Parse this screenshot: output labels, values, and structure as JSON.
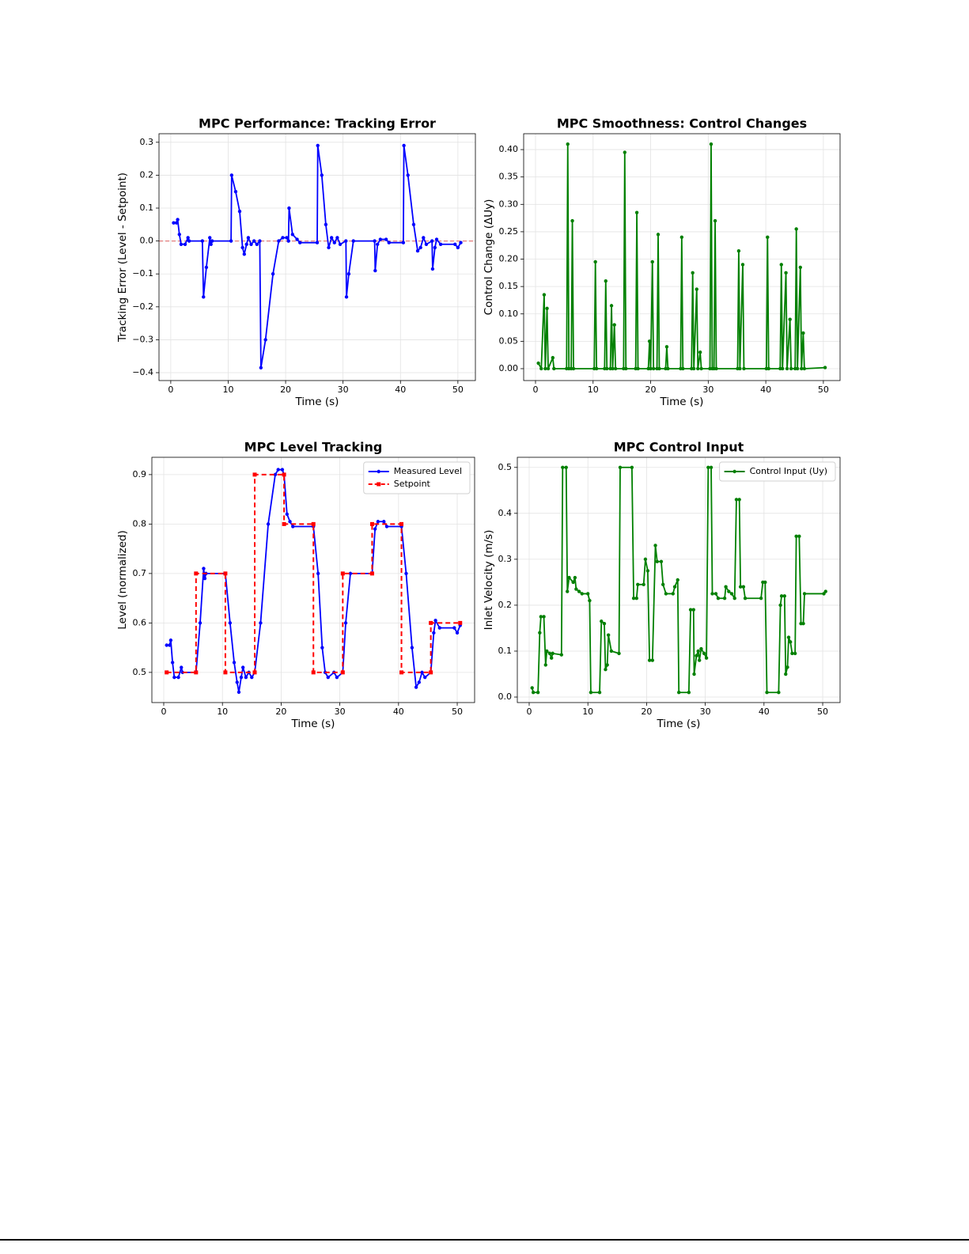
{
  "chart_data": [
    {
      "type": "line",
      "title": "MPC Performance: Tracking Error",
      "xlabel": "Time (s)",
      "ylabel": "Tracking Error (Level - Setpoint)",
      "xlim": [
        -2.05,
        53.05
      ],
      "ylim": [
        -0.424,
        0.326
      ],
      "xticks": [
        0,
        10,
        20,
        30,
        40,
        50
      ],
      "yticks": [
        {
          "value": -0.4,
          "label": "−0.4"
        },
        {
          "value": -0.3,
          "label": "−0.3"
        },
        {
          "value": -0.2,
          "label": "−0.2"
        },
        {
          "value": -0.1,
          "label": "−0.1"
        },
        {
          "value": 0,
          "label": "0.0"
        },
        0.1,
        0.2,
        0.3
      ],
      "grid": true,
      "hline": 0,
      "hline_color": "#e06060",
      "series": [
        {
          "color": "#0000ff",
          "x": [
            0.5,
            1.0,
            1.2,
            1.5,
            1.8,
            2.5,
            3.0,
            3.2,
            5.5,
            5.7,
            6.2,
            6.8,
            7.0,
            7.2,
            10.5,
            10.6,
            11.3,
            12.0,
            12.5,
            12.8,
            13.2,
            13.5,
            14.0,
            14.5,
            15.0,
            15.5,
            15.7,
            16.5,
            17.8,
            18.8,
            19.5,
            20.2,
            20.5,
            20.6,
            21.2,
            22.0,
            22.5,
            25.5,
            25.6,
            26.3,
            27.0,
            27.5,
            28.0,
            28.5,
            29.0,
            29.5,
            30.5,
            30.6,
            31.0,
            31.8,
            35.5,
            35.6,
            36.0,
            36.5,
            37.5,
            38.0,
            40.5,
            40.6,
            41.3,
            42.3,
            43.0,
            43.5,
            44.0,
            44.5,
            45.5,
            45.6,
            46.0,
            46.3,
            47.0,
            49.5,
            50.0,
            50.5
          ],
          "values": [
            0.055,
            0.055,
            0.065,
            0.02,
            -0.01,
            -0.01,
            0.01,
            0,
            0,
            -0.17,
            -0.08,
            0.01,
            -0.01,
            0,
            0,
            0.2,
            0.15,
            0.09,
            -0.02,
            -0.04,
            -0.01,
            0.01,
            -0.01,
            0,
            -0.01,
            0,
            -0.385,
            -0.3,
            -0.1,
            0,
            0.01,
            0.01,
            0,
            0.1,
            0.02,
            0.005,
            -0.005,
            -0.005,
            0.29,
            0.2,
            0.05,
            -0.02,
            0.01,
            -0.005,
            0.01,
            -0.01,
            0,
            -0.17,
            -0.1,
            0,
            0,
            -0.09,
            -0.01,
            0.005,
            0.005,
            -0.005,
            -0.005,
            0.29,
            0.2,
            0.05,
            -0.03,
            -0.02,
            0.01,
            -0.01,
            0,
            -0.085,
            -0.02,
            0.005,
            -0.01,
            -0.01,
            -0.02,
            -0.005
          ]
        }
      ]
    },
    {
      "type": "line",
      "title": "MPC Smoothness: Control Changes",
      "xlabel": "Time (s)",
      "ylabel": "Control Change (ΔUy)",
      "xlim": [
        -2.06,
        52.9
      ],
      "ylim": [
        -0.0217,
        0.429
      ],
      "xticks": [
        0,
        10,
        20,
        30,
        40,
        50
      ],
      "yticks": [
        {
          "value": 0,
          "label": "0.00"
        },
        {
          "value": 0.05,
          "label": "0.05"
        },
        {
          "value": 0.1,
          "label": "0.10"
        },
        {
          "value": 0.15,
          "label": "0.15"
        },
        {
          "value": 0.2,
          "label": "0.20"
        },
        {
          "value": 0.25,
          "label": "0.25"
        },
        {
          "value": 0.3,
          "label": "0.30"
        },
        {
          "value": 0.35,
          "label": "0.35"
        },
        {
          "value": 0.4,
          "label": "0.40"
        }
      ],
      "grid": true,
      "series": [
        {
          "color": "#008000",
          "x": [
            0.5,
            1.0,
            1.5,
            1.7,
            2.0,
            2.2,
            3.0,
            3.2,
            5.4,
            5.6,
            5.8,
            6.2,
            6.4,
            6.6,
            10.2,
            10.4,
            10.6,
            12.0,
            12.2,
            12.4,
            13.0,
            13.2,
            13.4,
            13.7,
            13.9,
            15.3,
            15.5,
            15.7,
            17.4,
            17.6,
            17.8,
            19.6,
            19.8,
            20.0,
            20.3,
            20.5,
            21.1,
            21.3,
            21.5,
            22.6,
            22.8,
            23.0,
            25.2,
            25.4,
            25.6,
            27.1,
            27.3,
            27.5,
            28.0,
            28.2,
            28.6,
            28.8,
            30.3,
            30.5,
            30.7,
            31.0,
            31.2,
            31.4,
            35.1,
            35.3,
            35.5,
            36.0,
            36.2,
            40.1,
            40.3,
            40.5,
            42.5,
            42.7,
            42.9,
            43.5,
            43.7,
            44.2,
            44.4,
            45.1,
            45.3,
            45.5,
            46.0,
            46.2,
            46.5,
            46.7,
            50.3
          ],
          "values": [
            0.01,
            0,
            0.135,
            0,
            0.11,
            0,
            0.02,
            0,
            0,
            0.41,
            0,
            0,
            0.27,
            0,
            0,
            0.195,
            0,
            0,
            0.16,
            0,
            0,
            0.115,
            0,
            0.08,
            0,
            0,
            0.395,
            0,
            0,
            0.285,
            0,
            0,
            0.05,
            0,
            0.195,
            0,
            0,
            0.245,
            0,
            0,
            0.04,
            0,
            0,
            0.24,
            0,
            0,
            0.175,
            0,
            0.145,
            0,
            0.03,
            0,
            0,
            0.41,
            0,
            0,
            0.27,
            0,
            0,
            0.215,
            0,
            0.19,
            0,
            0,
            0.24,
            0,
            0,
            0.19,
            0,
            0.175,
            0,
            0.09,
            0,
            0,
            0.255,
            0,
            0.185,
            0,
            0.065,
            0,
            0.002
          ]
        }
      ]
    },
    {
      "type": "line",
      "title": "MPC Level Tracking",
      "xlabel": "Time (s)",
      "ylabel": "Level (normalized)",
      "xlim": [
        -2.02,
        52.96
      ],
      "ylim": [
        0.439,
        0.935
      ],
      "xticks": [
        0,
        10,
        20,
        30,
        40,
        50
      ],
      "yticks": [
        0.5,
        0.6,
        0.7,
        0.8,
        0.9
      ],
      "grid": true,
      "legend": "upper right",
      "series": [
        {
          "name": "Measured Level",
          "color": "#0000ff",
          "x": [
            0.5,
            1.0,
            1.2,
            1.5,
            1.8,
            2.5,
            3.0,
            3.2,
            5.5,
            6.2,
            6.8,
            7.0,
            7.2,
            10.5,
            11.3,
            12.0,
            12.5,
            12.8,
            13.2,
            13.5,
            14.0,
            14.5,
            15.0,
            15.5,
            16.5,
            17.8,
            19.0,
            19.5,
            20.2,
            20.5,
            21.0,
            21.5,
            22.0,
            25.5,
            26.3,
            27.0,
            27.5,
            28.0,
            29.0,
            29.5,
            30.5,
            31.0,
            31.8,
            35.5,
            36.0,
            36.5,
            37.5,
            38.0,
            40.5,
            41.3,
            42.3,
            43.0,
            43.5,
            44.0,
            44.5,
            45.5,
            46.0,
            46.3,
            47.0,
            49.5,
            50.0,
            50.5
          ],
          "values": [
            0.555,
            0.555,
            0.565,
            0.52,
            0.49,
            0.49,
            0.51,
            0.5,
            0.5,
            0.6,
            0.71,
            0.69,
            0.7,
            0.7,
            0.6,
            0.52,
            0.48,
            0.46,
            0.49,
            0.51,
            0.49,
            0.5,
            0.49,
            0.5,
            0.6,
            0.8,
            0.9,
            0.91,
            0.91,
            0.9,
            0.82,
            0.805,
            0.795,
            0.795,
            0.7,
            0.55,
            0.5,
            0.49,
            0.5,
            0.49,
            0.5,
            0.6,
            0.7,
            0.7,
            0.79,
            0.805,
            0.805,
            0.795,
            0.795,
            0.7,
            0.55,
            0.47,
            0.48,
            0.5,
            0.49,
            0.5,
            0.58,
            0.605,
            0.59,
            0.59,
            0.58,
            0.595
          ]
        },
        {
          "name": "Setpoint",
          "color": "#ff0000",
          "dashed": true,
          "marker": "square",
          "x": [
            0.5,
            5.5,
            5.5,
            10.5,
            10.5,
            15.5,
            15.5,
            20.5,
            20.5,
            25.5,
            25.5,
            30.5,
            30.5,
            35.5,
            35.5,
            40.5,
            40.5,
            45.5,
            45.5,
            50.5
          ],
          "values": [
            0.5,
            0.5,
            0.7,
            0.7,
            0.5,
            0.5,
            0.9,
            0.9,
            0.8,
            0.8,
            0.5,
            0.5,
            0.7,
            0.7,
            0.8,
            0.8,
            0.5,
            0.5,
            0.6,
            0.6
          ]
        }
      ]
    },
    {
      "type": "line",
      "title": "MPC Control Input",
      "xlabel": "Time (s)",
      "ylabel": "Inlet Velocity (m/s)",
      "xlim": [
        -2.02,
        52.96
      ],
      "ylim": [
        -0.012,
        0.522
      ],
      "xticks": [
        0,
        10,
        20,
        30,
        40,
        50
      ],
      "yticks": [
        {
          "value": 0,
          "label": "0.0"
        },
        0.1,
        0.2,
        0.3,
        0.4,
        0.5
      ],
      "grid": true,
      "legend": "upper right",
      "series": [
        {
          "name": "Control Input (Uy)",
          "color": "#008000",
          "x": [
            0.5,
            0.7,
            1.5,
            1.8,
            2.0,
            2.5,
            2.8,
            3.0,
            3.5,
            3.8,
            4.0,
            5.5,
            5.7,
            6.3,
            6.5,
            6.8,
            7.5,
            7.8,
            8.0,
            8.5,
            9.0,
            10.0,
            10.3,
            10.5,
            12.0,
            12.3,
            12.8,
            13.0,
            13.3,
            13.5,
            14.0,
            15.3,
            15.5,
            17.5,
            17.8,
            18.3,
            18.5,
            19.5,
            19.8,
            20.2,
            20.5,
            21.0,
            21.5,
            21.8,
            22.5,
            22.8,
            23.3,
            24.5,
            24.8,
            25.3,
            25.5,
            27.2,
            27.5,
            28.0,
            28.1,
            28.5,
            28.8,
            29.0,
            29.3,
            29.8,
            30.2,
            30.5,
            31.0,
            31.2,
            31.8,
            32.2,
            33.3,
            33.5,
            34.0,
            34.5,
            35.0,
            35.3,
            35.8,
            36.0,
            36.5,
            36.8,
            39.5,
            39.8,
            40.2,
            40.5,
            42.5,
            42.8,
            43.0,
            43.5,
            43.7,
            44.0,
            44.2,
            44.5,
            44.8,
            45.3,
            45.5,
            46.0,
            46.3,
            46.7,
            46.9,
            50.2,
            50.5
          ],
          "values": [
            0.02,
            0.01,
            0.01,
            0.14,
            0.175,
            0.175,
            0.07,
            0.1,
            0.095,
            0.085,
            0.095,
            0.092,
            0.5,
            0.5,
            0.23,
            0.26,
            0.25,
            0.26,
            0.235,
            0.23,
            0.225,
            0.225,
            0.21,
            0.01,
            0.01,
            0.165,
            0.16,
            0.06,
            0.07,
            0.135,
            0.1,
            0.095,
            0.5,
            0.5,
            0.215,
            0.215,
            0.245,
            0.245,
            0.3,
            0.275,
            0.08,
            0.08,
            0.33,
            0.295,
            0.295,
            0.245,
            0.225,
            0.225,
            0.24,
            0.255,
            0.01,
            0.01,
            0.19,
            0.19,
            0.05,
            0.09,
            0.1,
            0.08,
            0.105,
            0.095,
            0.085,
            0.5,
            0.5,
            0.225,
            0.225,
            0.215,
            0.215,
            0.24,
            0.23,
            0.225,
            0.215,
            0.43,
            0.43,
            0.24,
            0.24,
            0.215,
            0.215,
            0.25,
            0.25,
            0.01,
            0.01,
            0.2,
            0.22,
            0.22,
            0.05,
            0.065,
            0.13,
            0.12,
            0.095,
            0.095,
            0.35,
            0.35,
            0.16,
            0.16,
            0.225,
            0.225,
            0.23
          ]
        }
      ]
    }
  ]
}
